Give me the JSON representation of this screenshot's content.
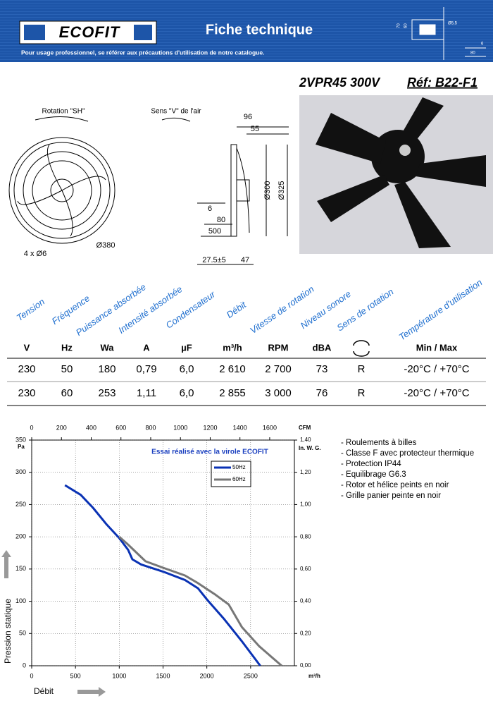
{
  "header": {
    "logo": "ECOFIT",
    "title": "Fiche technique",
    "subtitle": "Pour usage professionnel, se référer aux précautions d'utilisation de notre catalogue.",
    "diagram_labels": [
      "70",
      "60",
      "Ø5,5",
      "6",
      "80"
    ]
  },
  "product": {
    "model": "2VPR45 300V",
    "reference": "Réf: B22-F1"
  },
  "drawing": {
    "rotation": "Rotation \"SH\"",
    "airflow": "Sens \"V\" de l'air",
    "holes": "4 x Ø6",
    "grille_diameter": "Ø380",
    "dims": [
      "96",
      "55",
      "Ø300",
      "Ø325",
      "6",
      "80",
      "500",
      "27.5±5",
      "47"
    ]
  },
  "table": {
    "headers": [
      "Tension",
      "Fréquence",
      "Puissance absorbée",
      "Intensité absorbée",
      "Condensateur",
      "Débit",
      "Vitesse de rotation",
      "Niveau sonore",
      "Sens de rotation",
      "Température d'utilisation"
    ],
    "units": [
      "V",
      "Hz",
      "Wa",
      "A",
      "µF",
      "m³/h",
      "RPM",
      "dBA",
      null,
      "Min / Max"
    ],
    "rows": [
      [
        "230",
        "50",
        "180",
        "0,79",
        "6,0",
        "2 610",
        "2 700",
        "73",
        "R",
        "-20°C / +70°C"
      ],
      [
        "230",
        "60",
        "253",
        "1,11",
        "6,0",
        "2 855",
        "3 000",
        "76",
        "R",
        "-20°C / +70°C"
      ]
    ]
  },
  "chart_data": {
    "type": "line",
    "annotation": "Essai réalisé avec la virole ECOFIT",
    "x_label": "Débit",
    "x_unit": "m³/h",
    "x2_unit": "CFM",
    "y_label": "Pression statique",
    "y_unit": "Pa",
    "y2_unit": "In. W. G.",
    "xlim": [
      0,
      3000
    ],
    "xticks": [
      0,
      500,
      1000,
      1500,
      2000,
      2500
    ],
    "x2lim": [
      0,
      1766
    ],
    "x2ticks": [
      0,
      200,
      400,
      600,
      800,
      1000,
      1200,
      1400,
      1600
    ],
    "ylim": [
      0,
      350
    ],
    "yticks": [
      0,
      50,
      100,
      150,
      200,
      250,
      300,
      350
    ],
    "y2lim": [
      0,
      1.4
    ],
    "y2ticks": [
      {
        "value": 0,
        "label": "0,00"
      },
      {
        "value": 0.2,
        "label": "0,20"
      },
      {
        "value": 0.4,
        "label": "0,40"
      },
      {
        "value": 0.6,
        "label": "0,60"
      },
      {
        "value": 0.8,
        "label": "0,80"
      },
      {
        "value": 1.0,
        "label": "1,00"
      },
      {
        "value": 1.2,
        "label": "1,20"
      },
      {
        "value": 1.4,
        "label": "1,40"
      }
    ],
    "grid": true,
    "series": [
      {
        "name": "50Hz",
        "color": "#0a32b4",
        "x": [
          380,
          560,
          700,
          850,
          1000,
          1100,
          1150,
          1250,
          1500,
          1750,
          1900,
          2000,
          2200,
          2400,
          2610
        ],
        "values": [
          280,
          265,
          245,
          220,
          198,
          180,
          165,
          157,
          146,
          133,
          120,
          103,
          72,
          38,
          0
        ]
      },
      {
        "name": "60Hz",
        "color": "#777777",
        "x": [
          1000,
          1100,
          1200,
          1300,
          1500,
          1750,
          1900,
          2100,
          2250,
          2400,
          2600,
          2855
        ],
        "values": [
          200,
          188,
          175,
          162,
          152,
          140,
          128,
          110,
          95,
          60,
          30,
          0
        ]
      }
    ]
  },
  "features": [
    "- Roulements à billes",
    "- Classe F avec protecteur thermique",
    "- Protection IP44",
    "- Equilibrage G6.3",
    "- Rotor et hélice peints en noir",
    "- Grille panier peinte en noir"
  ]
}
